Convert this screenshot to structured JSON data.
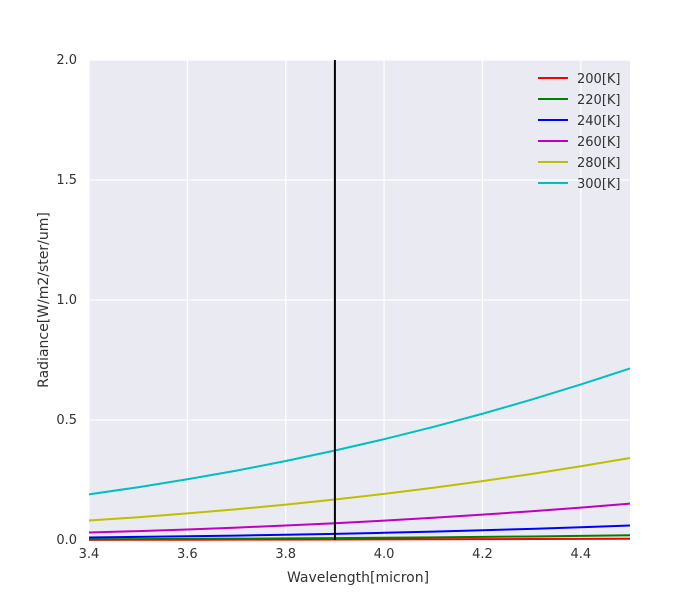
{
  "chart_data": {
    "type": "line",
    "title": "",
    "xlabel": "Wavelength[micron]",
    "ylabel": "Radiance[W/m2/ster/um]",
    "xlim": [
      3.4,
      4.5
    ],
    "ylim": [
      0.0,
      2.0
    ],
    "xticks": [
      3.4,
      3.6,
      3.8,
      4.0,
      4.2,
      4.4
    ],
    "xtick_labels": [
      "3.4",
      "3.6",
      "3.8",
      "4.0",
      "4.2",
      "4.4"
    ],
    "yticks": [
      0.0,
      0.5,
      1.0,
      1.5,
      2.0
    ],
    "ytick_labels": [
      "0.0",
      "0.5",
      "1.0",
      "1.5",
      "2.0"
    ],
    "grid": true,
    "legend_position": "top-right",
    "vertical_line": {
      "x": 3.9,
      "color": "#000000"
    },
    "x": [
      3.4,
      3.5,
      3.6,
      3.7,
      3.8,
      3.9,
      4.0,
      4.1,
      4.2,
      4.3,
      4.4,
      4.5
    ],
    "series": [
      {
        "name": "200[K]",
        "color": "#ff0000",
        "values": [
          0.0007,
          0.0009,
          0.0011,
          0.0014,
          0.0017,
          0.002,
          0.0024,
          0.0029,
          0.0034,
          0.004,
          0.0046,
          0.0053
        ]
      },
      {
        "name": "220[K]",
        "color": "#008000",
        "values": [
          0.003,
          0.0037,
          0.0045,
          0.0055,
          0.0066,
          0.0079,
          0.0093,
          0.011,
          0.0128,
          0.0148,
          0.0171,
          0.0196
        ]
      },
      {
        "name": "240[K]",
        "color": "#0000ff",
        "values": [
          0.0105,
          0.0128,
          0.0154,
          0.0184,
          0.0218,
          0.0257,
          0.0301,
          0.035,
          0.0404,
          0.0464,
          0.053,
          0.0602
        ]
      },
      {
        "name": "260[K]",
        "color": "#bf00bf",
        "values": [
          0.0312,
          0.0372,
          0.044,
          0.0517,
          0.0604,
          0.07,
          0.0807,
          0.0925,
          0.1055,
          0.1197,
          0.1351,
          0.1518
        ]
      },
      {
        "name": "280[K]",
        "color": "#bfbf00",
        "values": [
          0.081,
          0.095,
          0.1107,
          0.1281,
          0.1475,
          0.1688,
          0.1921,
          0.2176,
          0.2452,
          0.2751,
          0.3072,
          0.3417
        ]
      },
      {
        "name": "300[K]",
        "color": "#00bfbf",
        "values": [
          0.19,
          0.22,
          0.253,
          0.289,
          0.329,
          0.373,
          0.42,
          0.471,
          0.526,
          0.585,
          0.648,
          0.715
        ]
      }
    ]
  }
}
